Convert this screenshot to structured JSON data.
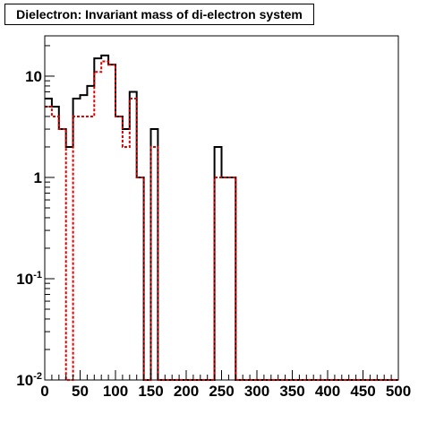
{
  "title": "Dielectron: Invariant mass of di-electron system",
  "chart_data": {
    "type": "line",
    "title": "Dielectron: Invariant mass of di-electron system",
    "xlabel": "",
    "ylabel": "",
    "xlim": [
      0,
      500
    ],
    "ylim": [
      0.01,
      25
    ],
    "y_scale": "log",
    "grid": false,
    "bin_width": 10,
    "x_tick_labels": [
      "0",
      "50",
      "100",
      "150",
      "200",
      "250",
      "300",
      "350",
      "400",
      "450",
      "500"
    ],
    "y_tick_labels": [
      {
        "value": 0.01,
        "base": "10",
        "exp": "-2"
      },
      {
        "value": 0.1,
        "base": "10",
        "exp": "-1"
      },
      {
        "value": 1,
        "text": "1"
      },
      {
        "value": 10,
        "text": "10"
      }
    ],
    "series": [
      {
        "color": "#000000",
        "style": "solid",
        "bin_edges_start": 0,
        "values": [
          6,
          5,
          3,
          2,
          6,
          6.5,
          8,
          15,
          16,
          13,
          4,
          3,
          7,
          1,
          0,
          3,
          0,
          0,
          0,
          0,
          0,
          0,
          0,
          0,
          2,
          1,
          1,
          0,
          0,
          0,
          0,
          0,
          0,
          0,
          0,
          0,
          0,
          0,
          0,
          0,
          0,
          0,
          0,
          0,
          0,
          0,
          0,
          0,
          0,
          0
        ]
      },
      {
        "color": "#dd0000",
        "style": "dotted",
        "bin_edges_start": 0,
        "values": [
          5,
          4,
          3,
          0,
          4,
          4,
          4,
          11,
          14,
          13,
          4,
          2,
          6,
          1,
          0,
          2,
          0,
          0,
          0,
          0,
          0,
          0,
          0,
          0,
          1,
          1,
          1,
          0,
          0,
          0,
          0,
          0,
          0,
          0,
          0,
          0,
          0,
          0,
          0,
          0,
          0,
          0,
          0,
          0,
          0,
          0,
          0,
          0,
          0,
          0
        ]
      }
    ]
  }
}
